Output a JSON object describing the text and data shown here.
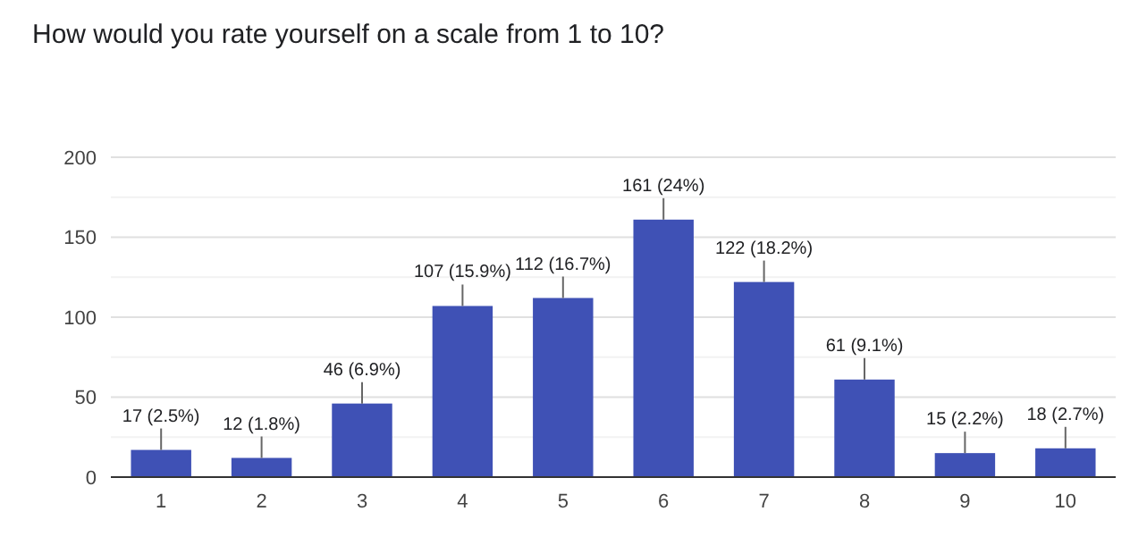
{
  "chart_data": {
    "type": "bar",
    "title": "How would you rate yourself on a scale from 1 to 10?",
    "categories": [
      "1",
      "2",
      "3",
      "4",
      "5",
      "6",
      "7",
      "8",
      "9",
      "10"
    ],
    "values": [
      17,
      12,
      46,
      107,
      112,
      161,
      122,
      61,
      15,
      18
    ],
    "value_labels": [
      "17 (2.5%)",
      "12 (1.8%)",
      "46 (6.9%)",
      "107 (15.9%)",
      "112 (16.7%)",
      "161 (24%)",
      "122 (18.2%)",
      "61 (9.1%)",
      "15 (2.2%)",
      "18 (2.7%)"
    ],
    "color": "#3f51b5",
    "ylim": [
      0,
      200
    ],
    "yticks": [
      0,
      {
        "value": 25,
        "label": null
      },
      50,
      {
        "value": 75,
        "label": null
      },
      100,
      {
        "value": 125,
        "label": null
      },
      150,
      {
        "value": 175,
        "label": null
      },
      200
    ],
    "grid": true
  }
}
